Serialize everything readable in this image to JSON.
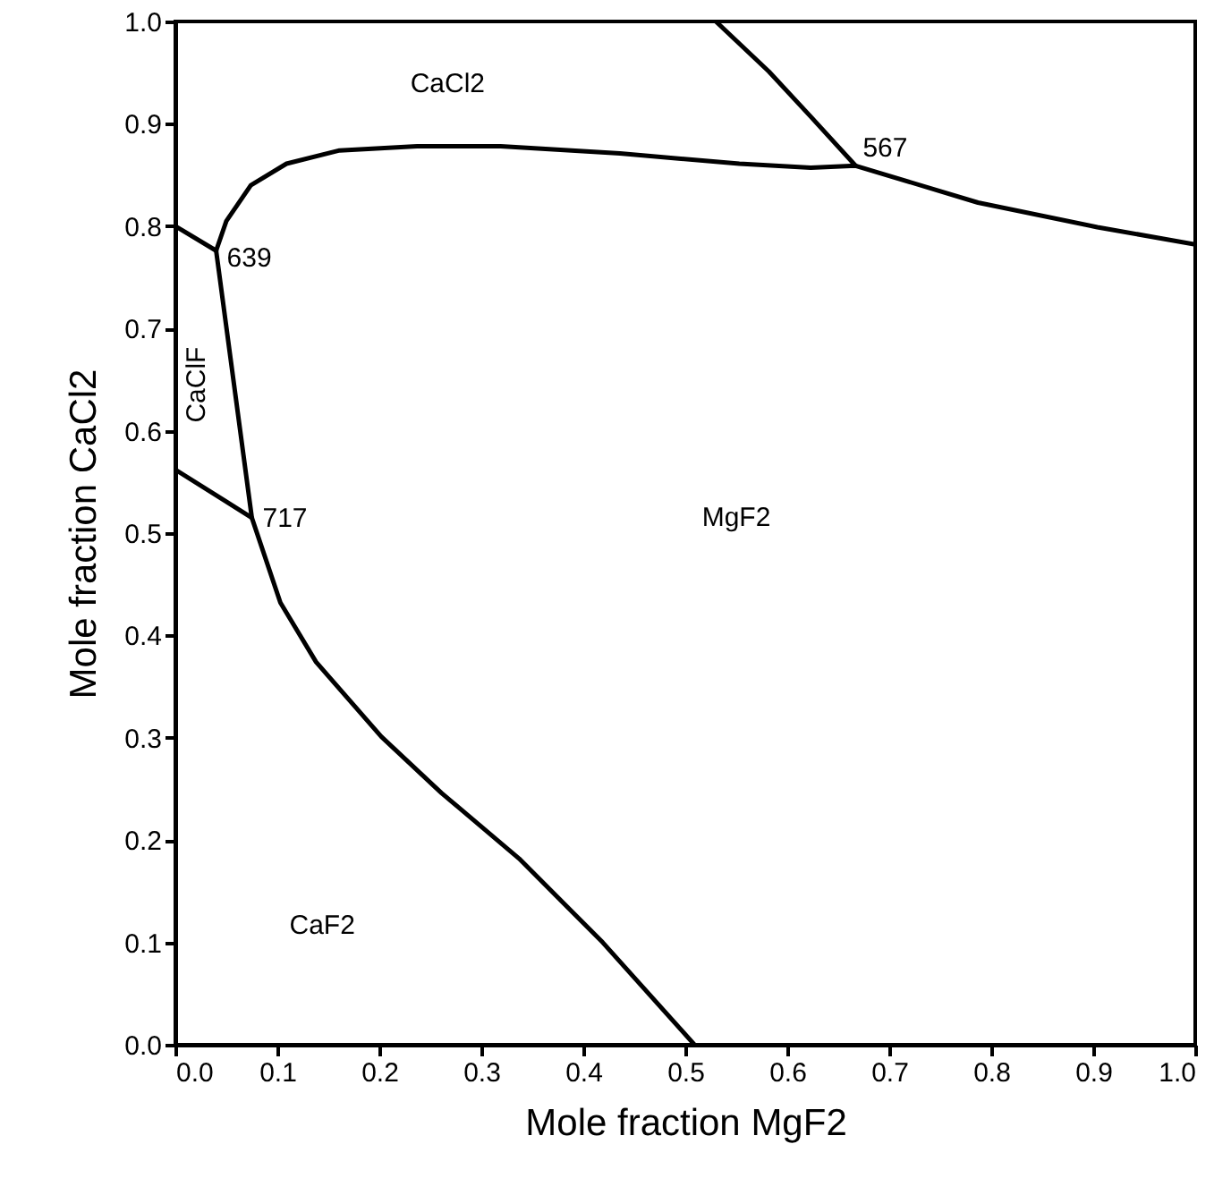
{
  "chart_data": {
    "type": "line",
    "xlabel": "Mole fraction MgF2",
    "ylabel": "Mole fraction CaCl2",
    "xlim": [
      0,
      1
    ],
    "ylim": [
      0,
      1
    ],
    "xticks": [
      {
        "value": 0,
        "label": "0.0"
      },
      0.1,
      0.2,
      0.3,
      0.4,
      0.5,
      0.6,
      0.7,
      0.8,
      0.9,
      {
        "value": 1,
        "label": "1.0"
      }
    ],
    "yticks": [
      {
        "value": 0,
        "label": "0.0"
      },
      0.1,
      0.2,
      0.3,
      0.4,
      0.5,
      0.6,
      0.7,
      0.8,
      0.9,
      {
        "value": 1,
        "label": "1.0"
      }
    ],
    "grid": false,
    "marker": "none",
    "line_style": "solid",
    "series": [
      {
        "color": "#000000",
        "x": [
          0,
          0.04
        ],
        "values": [
          0.8,
          0.776
        ]
      },
      {
        "color": "#000000",
        "x": [
          0.04,
          0.075,
          0.103,
          0.138,
          0.202,
          0.261,
          0.337,
          0.419,
          0.509
        ],
        "values": [
          0.776,
          0.515,
          0.432,
          0.374,
          0.301,
          0.246,
          0.182,
          0.1,
          0
        ]
      },
      {
        "color": "#000000",
        "x": [
          0,
          0.075
        ],
        "values": [
          0.562,
          0.515
        ]
      },
      {
        "color": "#000000",
        "x": [
          0.04,
          0.05,
          0.074,
          0.109,
          0.161,
          0.237,
          0.319,
          0.436,
          0.553,
          0.623,
          0.667,
          0.787,
          0.904,
          1
        ],
        "values": [
          0.776,
          0.805,
          0.84,
          0.861,
          0.874,
          0.878,
          0.878,
          0.871,
          0.861,
          0.857,
          0.859,
          0.823,
          0.799,
          0.782
        ]
      },
      {
        "color": "#000000",
        "x": [
          0.53,
          0.582,
          0.623,
          0.667
        ],
        "values": [
          1,
          0.951,
          0.907,
          0.859
        ]
      }
    ],
    "annotations": [
      {
        "text": "639",
        "x": 0.04,
        "y": 0.776
      },
      {
        "text": "717",
        "x": 0.075,
        "y": 0.515
      },
      {
        "text": "567",
        "x": 0.667,
        "y": 0.859
      },
      "CaCl2",
      "CaClF",
      "MgF2",
      "CaF2"
    ]
  }
}
